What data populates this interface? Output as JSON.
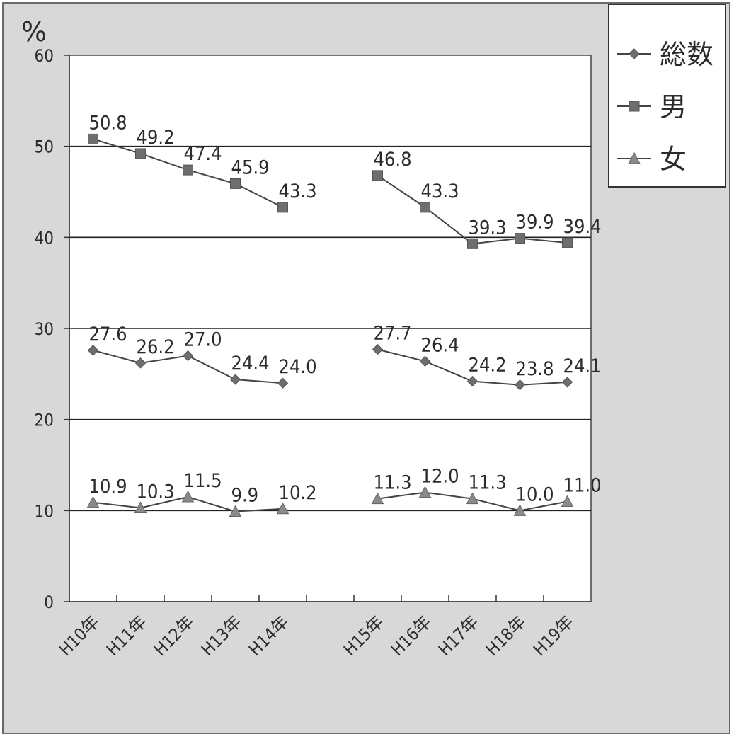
{
  "chart_data": {
    "type": "line",
    "ylabel": "%",
    "ylim": [
      0,
      60
    ],
    "yticks": [
      0,
      10,
      20,
      30,
      40,
      50,
      60
    ],
    "categories": [
      "H10年",
      "H11年",
      "H12年",
      "H13年",
      "H14年",
      "",
      "H15年",
      "H16年",
      "H17年",
      "H18年",
      "H19年"
    ],
    "segments": [
      [
        0,
        4
      ],
      [
        6,
        10
      ]
    ],
    "legend_position": "top-right",
    "grid": true,
    "series": [
      {
        "name": "総数",
        "marker": "diamond",
        "color": "#6e6e6e",
        "values": [
          27.6,
          26.2,
          27.0,
          24.4,
          24.0,
          null,
          27.7,
          26.4,
          24.2,
          23.8,
          24.1
        ],
        "labels": [
          "27.6",
          "26.2",
          "27.0",
          "24.4",
          "24.0",
          "",
          "27.7",
          "26.4",
          "24.2",
          "23.8",
          "24.1"
        ]
      },
      {
        "name": "男",
        "marker": "square",
        "color": "#6e6e6e",
        "values": [
          50.8,
          49.2,
          47.4,
          45.9,
          43.3,
          null,
          46.8,
          43.3,
          39.3,
          39.9,
          39.4
        ],
        "labels": [
          "50.8",
          "49.2",
          "47.4",
          "45.9",
          "43.3",
          "",
          "46.8",
          "43.3",
          "39.3",
          "39.9",
          "39.4"
        ]
      },
      {
        "name": "女",
        "marker": "triangle",
        "color": "#8a8a8a",
        "values": [
          10.9,
          10.3,
          11.5,
          9.9,
          10.2,
          null,
          11.3,
          12.0,
          11.3,
          10.0,
          11.0
        ],
        "labels": [
          "10.9",
          "10.3",
          "11.5",
          "9.9",
          "10.2",
          "",
          "11.3",
          "12.0",
          "11.3",
          "10.0",
          "11.0"
        ]
      }
    ]
  }
}
